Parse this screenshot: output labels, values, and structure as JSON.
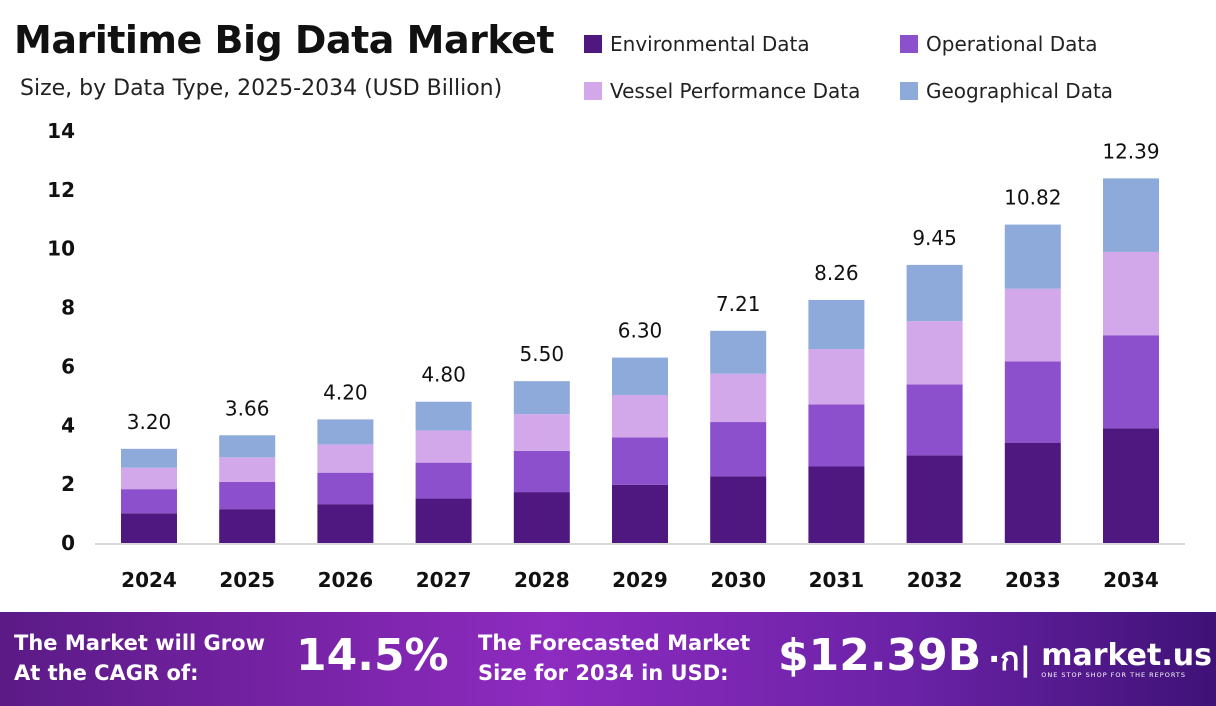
{
  "chart_data": {
    "type": "bar",
    "stacked": true,
    "title": "Maritime Big Data Market",
    "subtitle": "Size, by Data Type, 2025-2034 (USD Billion)",
    "categories": [
      "2024",
      "2025",
      "2026",
      "2027",
      "2028",
      "2029",
      "2030",
      "2031",
      "2032",
      "2033",
      "2034"
    ],
    "totals": [
      "3.20",
      "3.66",
      "4.20",
      "4.80",
      "5.50",
      "6.30",
      "7.21",
      "8.26",
      "9.45",
      "10.82",
      "12.39"
    ],
    "series": [
      {
        "name": "Environmental Data",
        "color": "#4f1780",
        "values": [
          1.01,
          1.15,
          1.32,
          1.51,
          1.73,
          1.98,
          2.27,
          2.6,
          2.98,
          3.41,
          3.9
        ]
      },
      {
        "name": "Operational Data",
        "color": "#8c50cc",
        "values": [
          0.82,
          0.93,
          1.07,
          1.22,
          1.4,
          1.61,
          1.84,
          2.11,
          2.41,
          2.76,
          3.16
        ]
      },
      {
        "name": "Vessel Performance Data",
        "color": "#d3a8ea",
        "values": [
          0.73,
          0.83,
          0.96,
          1.09,
          1.25,
          1.44,
          1.64,
          1.88,
          2.15,
          2.47,
          2.83
        ]
      },
      {
        "name": "Geographical Data",
        "color": "#8eaadb",
        "values": [
          0.64,
          0.75,
          0.85,
          0.98,
          1.12,
          1.27,
          1.46,
          1.67,
          1.91,
          2.18,
          2.5
        ]
      }
    ],
    "yticks": [
      "0",
      "2",
      "4",
      "6",
      "8",
      "10",
      "12",
      "14"
    ],
    "ylim": [
      0,
      14
    ],
    "grid": false,
    "legend": "top-right"
  },
  "footer": {
    "cagr_label_1": "The Market will Grow",
    "cagr_label_2": "At the CAGR of:",
    "cagr_value": "14.5%",
    "forecast_label_1": "The Forecasted Market",
    "forecast_label_2": "Size for 2034 in USD:",
    "forecast_value": "$12.39B",
    "logo_name": "market.us",
    "logo_tagline": "ONE STOP SHOP FOR THE REPORTS"
  }
}
